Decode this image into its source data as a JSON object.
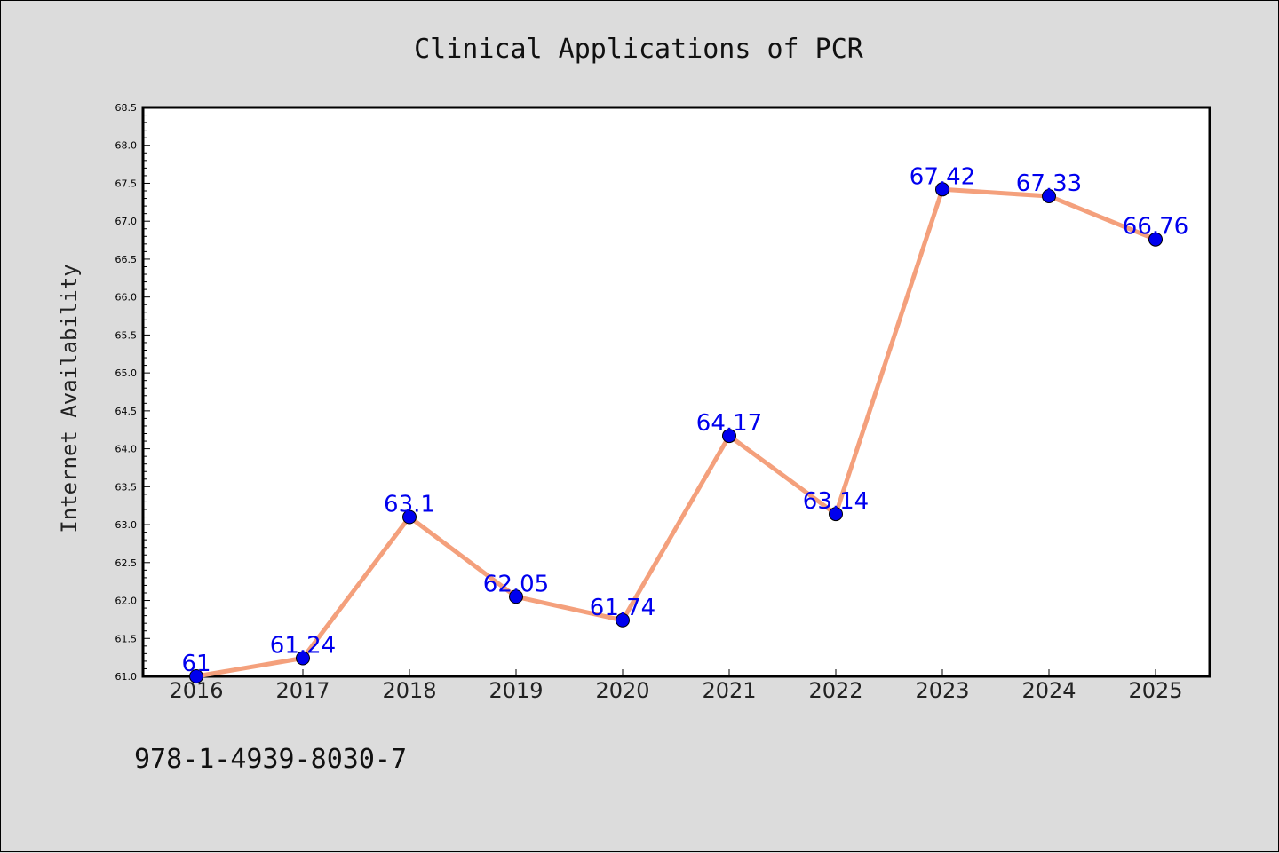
{
  "chart_data": {
    "type": "line",
    "title": "Clinical Applications of PCR",
    "ylabel": "Internet Availability",
    "xlabel": "",
    "categories": [
      "2016",
      "2017",
      "2018",
      "2019",
      "2020",
      "2021",
      "2022",
      "2023",
      "2024",
      "2025"
    ],
    "series": [
      {
        "values": [
          61,
          61.24,
          63.1,
          62.05,
          61.74,
          64.17,
          63.14,
          67.42,
          67.33,
          66.76
        ],
        "data_labels": [
          "61",
          "61.24",
          "63.1",
          "62.05",
          "61.74",
          "64.17",
          "63.14",
          "67.42",
          "67.33",
          "66.76"
        ],
        "line_color": "#f4a07c",
        "marker_color": "#0000ee",
        "label_color": "#0000ee"
      }
    ],
    "ylim": [
      61.0,
      68.5
    ],
    "yticks": [
      "61.0",
      "61.5",
      "62.0",
      "62.5",
      "63.0",
      "63.5",
      "64.0",
      "64.5",
      "65.0",
      "65.5",
      "66.0",
      "66.5",
      "67.0",
      "67.5",
      "68.0",
      "68.5"
    ],
    "grid": false,
    "legend": "none"
  },
  "footer_text": "978-1-4939-8030-7",
  "colors": {
    "background": "#dcdcdc",
    "plot_background": "#ffffff"
  }
}
